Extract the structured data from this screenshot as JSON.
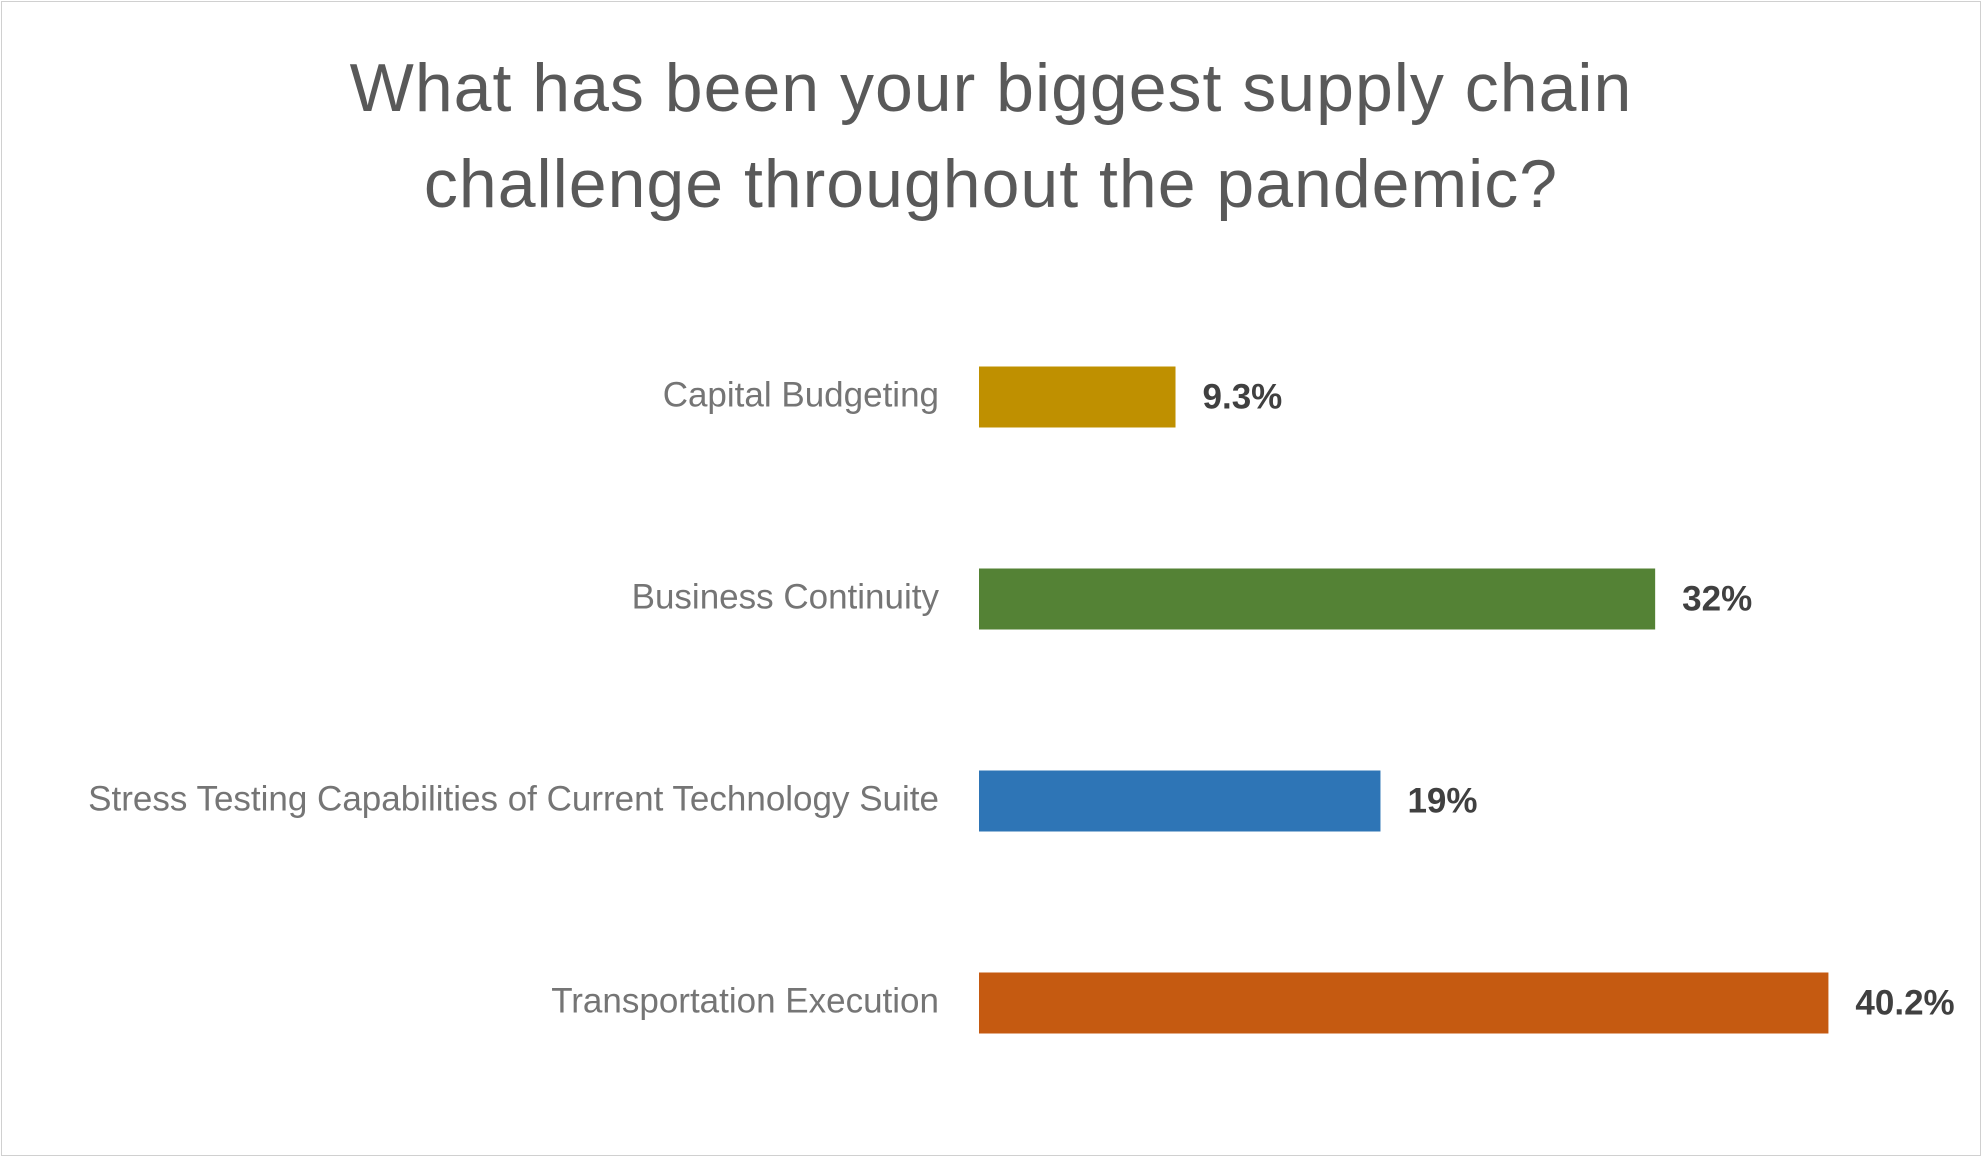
{
  "chart_data": {
    "type": "bar",
    "orientation": "horizontal",
    "title": "What has been your biggest supply chain challenge throughout the pandemic?",
    "categories": [
      "Capital Budgeting",
      "Business Continuity",
      "Stress Testing Capabilities of Current Technology Suite",
      "Transportation Execution"
    ],
    "values": [
      9.3,
      32,
      19,
      40.2
    ],
    "value_labels": [
      "9.3%",
      "32%",
      "19%",
      "40.2%"
    ],
    "colors": [
      "#bf9000",
      "#548235",
      "#2e75b6",
      "#c55a11"
    ]
  }
}
